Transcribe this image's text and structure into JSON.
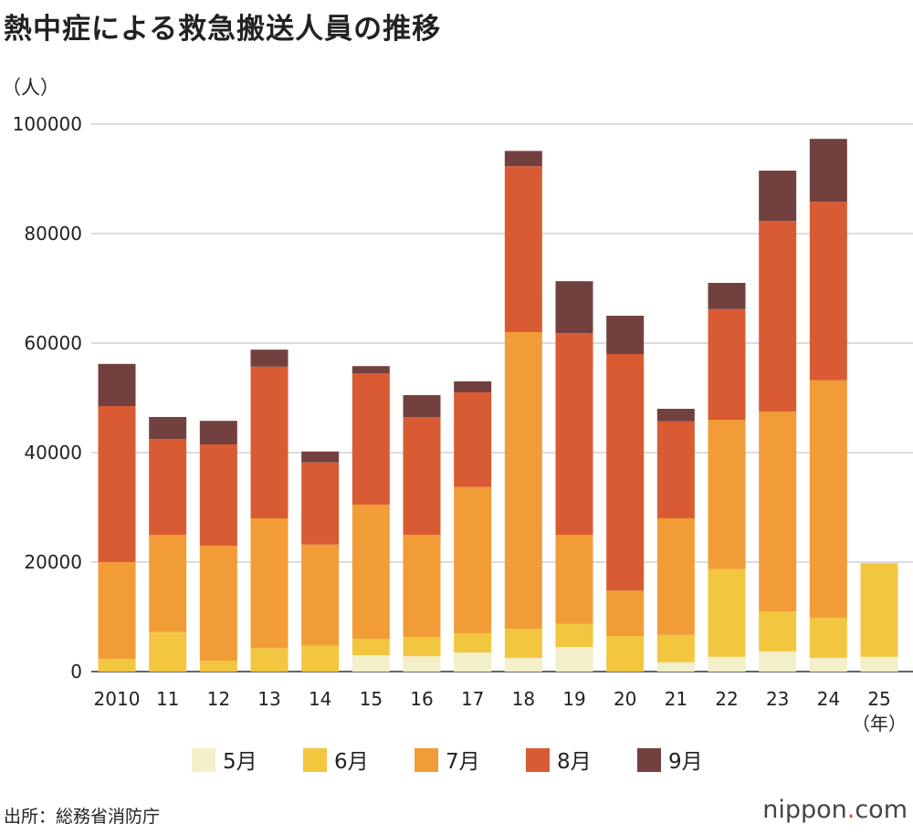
{
  "title": "熱中症による救急搬送人員の推移",
  "source": "出所：総務省消防庁",
  "logo": {
    "text": "nippon",
    "dot": ".",
    "suffix": "com"
  },
  "chart_data": {
    "type": "bar",
    "stacked": true,
    "title": "熱中症による救急搬送人員の推移",
    "ylabel": "（人）",
    "xlabel": "（年）",
    "ylim": [
      0,
      100000
    ],
    "yticks": [
      0,
      20000,
      40000,
      60000,
      80000,
      100000
    ],
    "grid": true,
    "legend_position": "bottom",
    "categories": [
      "2010",
      "11",
      "12",
      "13",
      "14",
      "15",
      "16",
      "17",
      "18",
      "19",
      "20",
      "21",
      "22",
      "23",
      "24",
      "25"
    ],
    "series": [
      {
        "name": "5月",
        "color": "#f3efc8",
        "values": [
          0,
          0,
          0,
          0,
          0,
          3000,
          2800,
          3500,
          2500,
          4500,
          0,
          1700,
          2700,
          3700,
          2500,
          2700
        ]
      },
      {
        "name": "6月",
        "color": "#f3c63f",
        "values": [
          2300,
          7200,
          2000,
          4300,
          4700,
          3000,
          3500,
          3500,
          5300,
          4200,
          6500,
          5000,
          16000,
          7300,
          7300,
          17100
        ]
      },
      {
        "name": "7月",
        "color": "#f29c38",
        "values": [
          17700,
          17800,
          21000,
          23700,
          18500,
          24500,
          18700,
          26700,
          54200,
          16300,
          8300,
          21300,
          27300,
          36500,
          43400,
          0
        ]
      },
      {
        "name": "8月",
        "color": "#d95b33",
        "values": [
          28500,
          17500,
          18500,
          27700,
          15000,
          24000,
          21500,
          17300,
          30300,
          36800,
          43200,
          17700,
          20200,
          34800,
          32600,
          0
        ]
      },
      {
        "name": "9月",
        "color": "#734040",
        "values": [
          7700,
          4000,
          4300,
          3100,
          2000,
          1300,
          4000,
          2000,
          2800,
          9500,
          7000,
          2300,
          4800,
          9200,
          11500,
          0
        ]
      }
    ]
  }
}
